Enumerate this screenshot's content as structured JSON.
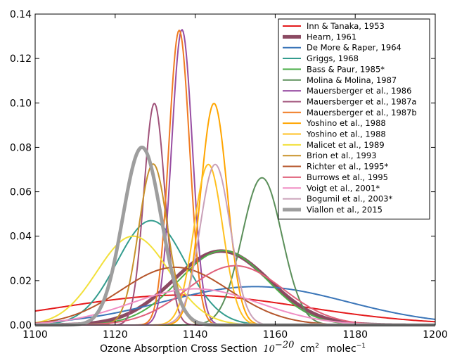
{
  "chart_data": {
    "type": "line",
    "title": "",
    "xlabel": "Ozone Absorption Cross Section",
    "xlabel_unit": {
      "base": "10",
      "exp": "−20",
      "cm": "cm",
      "cm_exp": "2",
      "molec": "molec",
      "molec_exp": "−1"
    },
    "ylabel": "",
    "xlim": [
      1100,
      1200
    ],
    "ylim": [
      0,
      0.14
    ],
    "xticks": [
      1100,
      1120,
      1140,
      1160,
      1180,
      1200
    ],
    "xtick_labels": [
      "1100",
      "1120",
      "1140",
      "1160",
      "1180",
      "1200"
    ],
    "yticks": [
      0,
      0.02,
      0.04,
      0.06,
      0.08,
      0.1,
      0.12,
      0.14
    ],
    "ytick_labels": [
      "0.00",
      "0.02",
      "0.04",
      "0.06",
      "0.08",
      "0.10",
      "0.12",
      "0.14"
    ],
    "grid": false,
    "legend_position": "top-right",
    "series": [
      {
        "name": "Inn & Tanaka, 1953",
        "color": "#e41a1c",
        "linewidth": 2,
        "mean": 1137,
        "sd": 30,
        "peak": 0.0135
      },
      {
        "name": "Hearn, 1961",
        "color": "#8b4a62",
        "linewidth": 5,
        "mean": 1146.5,
        "sd": 12,
        "peak": 0.0333
      },
      {
        "name": "De More & Raper, 1964",
        "color": "#3a75b8",
        "linewidth": 2,
        "mean": 1155,
        "sd": 23,
        "peak": 0.0173
      },
      {
        "name": "Griggs, 1968",
        "color": "#339c8e",
        "linewidth": 2,
        "mean": 1129,
        "sd": 8.5,
        "peak": 0.047
      },
      {
        "name": "Bass & Paur, 1985*",
        "color": "#4daf4a",
        "linewidth": 2,
        "mean": 1147,
        "sd": 11,
        "peak": 0.0335
      },
      {
        "name": "Molina & Molina, 1987",
        "color": "#5b8f5a",
        "linewidth": 2,
        "mean": 1156.7,
        "sd": 5,
        "peak": 0.0663
      },
      {
        "name": "Mauersberger et al., 1986",
        "color": "#984ea3",
        "linewidth": 2,
        "mean": 1136.7,
        "sd": 2.6,
        "peak": 0.133
      },
      {
        "name": "Mauersberger et al., 1987a",
        "color": "#a0527a",
        "linewidth": 2,
        "mean": 1129.8,
        "sd": 2.6,
        "peak": 0.0998
      },
      {
        "name": "Mauersberger et al., 1987b",
        "color": "#f07b22",
        "linewidth": 2,
        "mean": 1136,
        "sd": 2.6,
        "peak": 0.1327
      },
      {
        "name": "Yoshino et al., 1988",
        "color": "#ffa500",
        "linewidth": 2,
        "mean": 1144.7,
        "sd": 3.3,
        "peak": 0.0998
      },
      {
        "name": "Yoshino et al., 1988",
        "color": "#ffc020",
        "linewidth": 2,
        "mean": 1143.3,
        "sd": 3.6,
        "peak": 0.0723
      },
      {
        "name": "Malicet et al., 1989",
        "color": "#f2e03a",
        "linewidth": 2,
        "mean": 1124.5,
        "sd": 9,
        "peak": 0.04
      },
      {
        "name": "Brion et al., 1993",
        "color": "#c8922a",
        "linewidth": 2,
        "mean": 1129.5,
        "sd": 3.6,
        "peak": 0.0725
      },
      {
        "name": "Richter et al., 1995*",
        "color": "#b5552b",
        "linewidth": 2,
        "mean": 1135,
        "sd": 13.5,
        "peak": 0.026
      },
      {
        "name": "Burrows et al., 1995",
        "color": "#e0607a",
        "linewidth": 2,
        "mean": 1150,
        "sd": 12,
        "peak": 0.0267
      },
      {
        "name": "Voigt et al., 2001*",
        "color": "#f08ec4",
        "linewidth": 2,
        "mean": 1140,
        "sd": 16,
        "peak": 0.0163
      },
      {
        "name": "Bogumil et al., 2003*",
        "color": "#c9a0b8",
        "linewidth": 2,
        "mean": 1145,
        "sd": 3.8,
        "peak": 0.0723
      },
      {
        "name": "Viallon et al., 2015",
        "color": "#9e9e9e",
        "linewidth": 5,
        "mean": 1126.7,
        "sd": 4.8,
        "peak": 0.08
      }
    ]
  }
}
